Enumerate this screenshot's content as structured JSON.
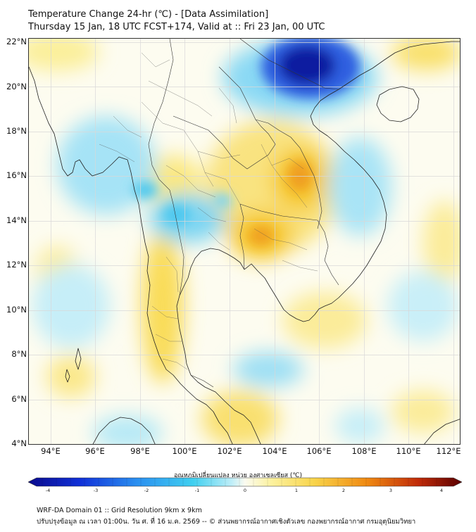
{
  "header": {
    "title_line1": "Temperature Change 24-hr (℃) - [Data Assimilation]",
    "title_line2": "Thursday 15 Jan, 18 UTC FCST+174, Valid at :: Fri 23 Jan, 00 UTC"
  },
  "map": {
    "lat_labels": [
      "22°N",
      "20°N",
      "18°N",
      "16°N",
      "14°N",
      "12°N",
      "10°N",
      "8°N",
      "6°N",
      "4°N"
    ],
    "lon_labels": [
      "94°E",
      "96°E",
      "98°E",
      "100°E",
      "102°E",
      "104°E",
      "106°E",
      "108°E",
      "110°E",
      "112°E"
    ],
    "colors": {
      "strong_cold": "#0a1aa0",
      "cold": "#2f5fe0",
      "cool": "#4cc8ef",
      "light_cool": "#b7ebf8",
      "neutral": "#fdfcf0",
      "light_warm": "#fbf0a8",
      "warm": "#f6c829",
      "hot": "#ef8f12",
      "very_hot": "#6a0000"
    }
  },
  "colorbar": {
    "title": "อุณหภูมิเปลี่ยนแปลง หน่วย องศาเซลเซียส (℃)",
    "ticks": [
      "-4",
      "-3",
      "-2",
      "-1",
      "0",
      "1",
      "2",
      "3",
      "4"
    ],
    "range": [
      -4,
      4
    ]
  },
  "footer": {
    "line1": "WRF-DA Domain 01 :: Grid Resolution 9km x 9km",
    "line2": "ปรับปรุงข้อมูล ณ เวลา 01:00น. วัน ศ. ที่ 16 ม.ค. 2569 -- © ส่วนพยากรณ์อากาศเชิงตัวเลข กองพยากรณ์อากาศ กรมอุตุนิยมวิทยา"
  }
}
